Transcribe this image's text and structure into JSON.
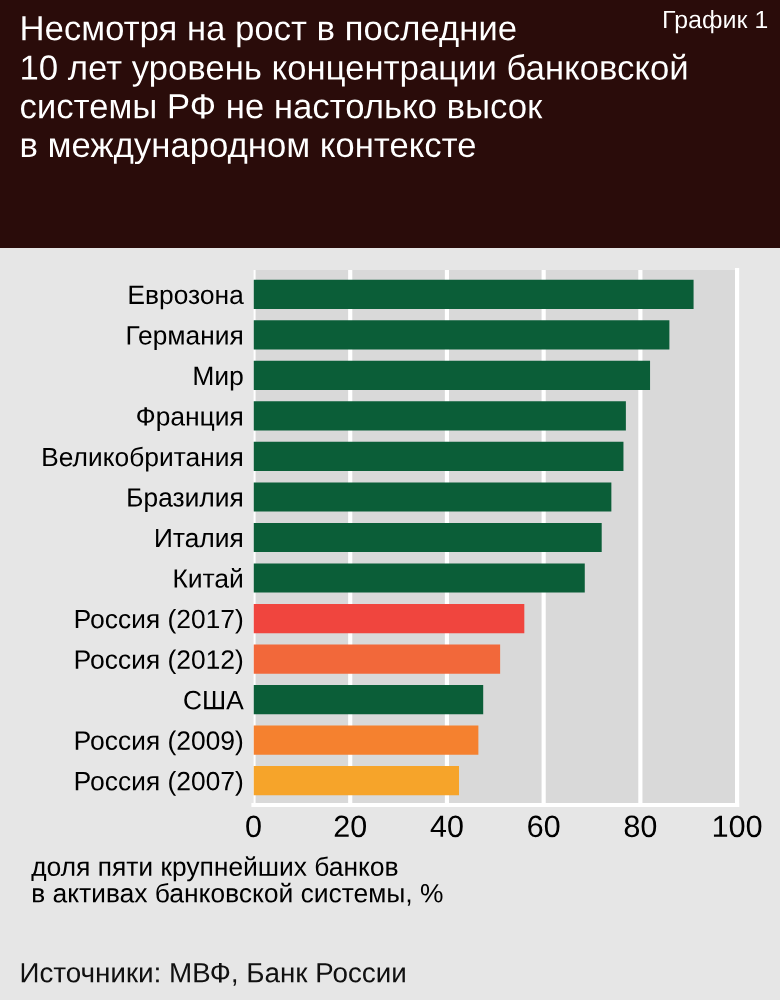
{
  "chart_data": {
    "type": "bar",
    "orientation": "horizontal",
    "title": "Несмотря на рост в последние\n10 лет уровень концентрации банковской\nсистемы РФ не настолько высок\nв международном контексте",
    "annotations": [
      "График 1",
      "Источники: МВФ, Банк России"
    ],
    "xlabel": "доля пяти крупнейших банков\nв активах банковской системы, %",
    "categories": [
      "Еврозона",
      "Германия",
      "Мир",
      "Франция",
      "Великобритания",
      "Бразилия",
      "Италия",
      "Китай",
      "Россия (2017)",
      "Россия (2012)",
      "США",
      "Россия (2009)",
      "Россия (2007)"
    ],
    "values": [
      91,
      86,
      82,
      77,
      76.5,
      74,
      72,
      68.5,
      56,
      51,
      47.5,
      46.5,
      42.5
    ],
    "colors": [
      "#0b5e38",
      "#0b5e38",
      "#0b5e38",
      "#0b5e38",
      "#0b5e38",
      "#0b5e38",
      "#0b5e38",
      "#0b5e38",
      "#f0453e",
      "#f2683a",
      "#0b5e38",
      "#f5812f",
      "#f6a42a"
    ],
    "xlim": [
      0,
      100
    ],
    "xticks": [
      0,
      20,
      40,
      60,
      80,
      100
    ],
    "grid": "x"
  }
}
